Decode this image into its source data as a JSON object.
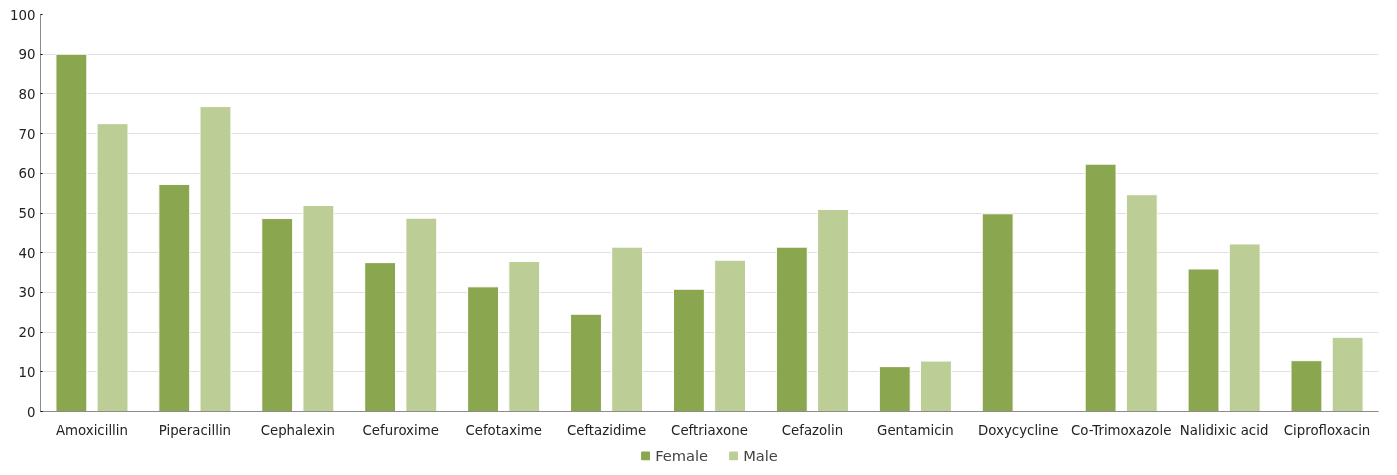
{
  "chart_data": {
    "type": "bar",
    "categories": [
      "Amoxicillin",
      "Piperacillin",
      "Cephalexin",
      "Cefuroxime",
      "Cefotaxime",
      "Ceftazidime",
      "Ceftriaxone",
      "Cefazolin",
      "Gentamicin",
      "Doxycycline",
      "Co-Trimoxazole",
      "Nalidixic acid",
      "Ciprofloxacin"
    ],
    "series": [
      {
        "name": "Female",
        "color": "#8aa64e",
        "values": [
          90,
          57.2,
          48.6,
          37.5,
          31.4,
          24.5,
          30.8,
          41.4,
          11.3,
          49.8,
          62.3,
          35.9,
          12.8
        ]
      },
      {
        "name": "Male",
        "color": "#bccd96",
        "values": [
          72.5,
          76.8,
          51.9,
          48.7,
          37.8,
          41.4,
          38.1,
          50.9,
          12.7,
          null,
          54.6,
          42.2,
          18.7
        ]
      }
    ],
    "ylim": [
      0,
      100
    ],
    "yticks": [
      0,
      10,
      20,
      30,
      40,
      50,
      60,
      70,
      80,
      90,
      100
    ],
    "grid": "y",
    "legend": "bottom"
  }
}
